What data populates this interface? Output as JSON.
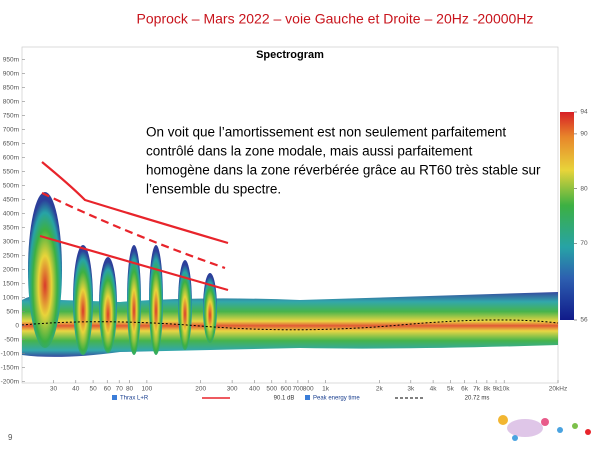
{
  "slide_title": "Poprock – Mars 2022 – voie Gauche et Droite – 20Hz -20000Hz",
  "page_number": "9",
  "chart_data": {
    "type": "spectrogram",
    "title": "Spectrogram",
    "annotation": [
      "On voit que l’amortissement est non seulement parfaitement",
      "contrôlé dans la zone modale, mais aussi parfaitement",
      "homogène dans la zone réverbérée grâce au RT60 très stable sur",
      "l’ensemble du spectre."
    ],
    "xscale": "log",
    "xlim": [
      20,
      20000
    ],
    "xticks": [
      30,
      40,
      50,
      60,
      70,
      80,
      100,
      200,
      300,
      400,
      500,
      600,
      700,
      800,
      {
        "value": 1000,
        "label": "1k"
      },
      {
        "value": 2000,
        "label": "2k"
      },
      {
        "value": 3000,
        "label": "3k"
      },
      {
        "value": 4000,
        "label": "4k"
      },
      {
        "value": 5000,
        "label": "5k"
      },
      {
        "value": 6000,
        "label": "6k"
      },
      {
        "value": 7000,
        "label": "7k"
      },
      {
        "value": 8000,
        "label": "8k"
      },
      {
        "value": 9000,
        "label": "9k"
      },
      {
        "value": 10000,
        "label": "10k"
      },
      {
        "value": 20000,
        "label": "20kHz"
      }
    ],
    "ylim": [
      -205,
      995
    ],
    "yticks": [
      {
        "value": 950,
        "label": "950m"
      },
      {
        "value": 900,
        "label": "900m"
      },
      {
        "value": 850,
        "label": "850m"
      },
      {
        "value": 800,
        "label": "800m"
      },
      {
        "value": 750,
        "label": "750m"
      },
      {
        "value": 700,
        "label": "700m"
      },
      {
        "value": 650,
        "label": "650m"
      },
      {
        "value": 600,
        "label": "600m"
      },
      {
        "value": 550,
        "label": "550m"
      },
      {
        "value": 500,
        "label": "500m"
      },
      {
        "value": 450,
        "label": "450m"
      },
      {
        "value": 400,
        "label": "400m"
      },
      {
        "value": 350,
        "label": "350m"
      },
      {
        "value": 300,
        "label": "300m"
      },
      {
        "value": 250,
        "label": "250m"
      },
      {
        "value": 200,
        "label": "200m"
      },
      {
        "value": 150,
        "label": "150m"
      },
      {
        "value": 100,
        "label": "100m"
      },
      {
        "value": 50,
        "label": "50m"
      },
      0,
      {
        "value": -50,
        "label": "-50m"
      },
      {
        "value": -100,
        "label": "-100m"
      },
      {
        "value": -150,
        "label": "-150m"
      },
      {
        "value": -200,
        "label": "-200m"
      }
    ],
    "colorbar": {
      "lim": [
        56,
        94
      ],
      "ticks": [
        94,
        90,
        80,
        70,
        56
      ]
    },
    "legend": [
      {
        "name": "Thrax L+R",
        "color": "#e8242b",
        "dash": false,
        "value_label": "90.1 dB"
      },
      {
        "name": "Peak energy time",
        "color": "#000000",
        "dash": true,
        "value_label": "20.72 ms"
      }
    ]
  }
}
